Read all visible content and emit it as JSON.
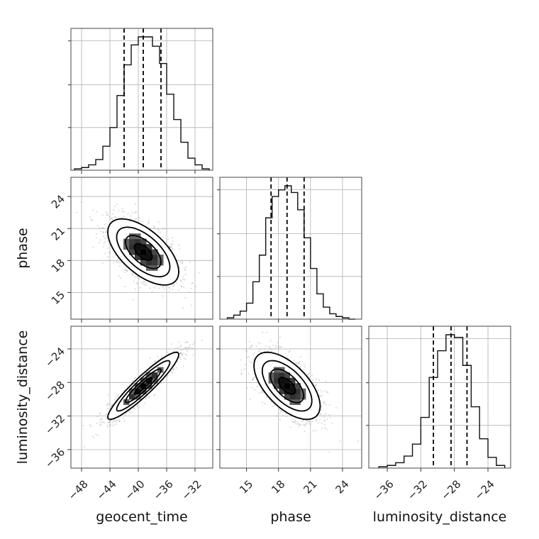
{
  "chart_data": {
    "type": "corner",
    "parameters": [
      "geocent_time",
      "phase",
      "luminosity_distance"
    ],
    "axes": {
      "geocent_time": {
        "range": [
          -49.5,
          -29.5
        ],
        "ticks": [
          -48,
          -44,
          -40,
          -36,
          -32
        ],
        "tick_labels": [
          "−48",
          "−44",
          "−40",
          "−36",
          "−32"
        ]
      },
      "phase": {
        "range": [
          12.5,
          25.8
        ],
        "ticks": [
          15,
          18,
          21,
          24
        ],
        "tick_labels": [
          "15",
          "18",
          "21",
          "24"
        ]
      },
      "luminosity_distance": {
        "range": [
          -38.2,
          -21.3
        ],
        "ticks": [
          -36,
          -32,
          -28,
          -24
        ],
        "tick_labels": [
          "−36",
          "−32",
          "−28",
          "−24"
        ]
      }
    },
    "marginals": [
      {
        "parameter": "geocent_time",
        "bin_edges": [
          -49,
          -48,
          -47,
          -46,
          -45,
          -44,
          -43,
          -42,
          -41,
          -40,
          -39,
          -38,
          -37,
          -36,
          -35,
          -34,
          -33,
          -32,
          -31,
          -30
        ],
        "counts": [
          1,
          2,
          4,
          8,
          18,
          32,
          56,
          79,
          94,
          100,
          100,
          93,
          80,
          57,
          38,
          21,
          9,
          4,
          1
        ],
        "quantiles": [
          -42.0,
          -39.3,
          -36.8
        ]
      },
      {
        "parameter": "phase",
        "bin_edges": [
          13.2,
          13.8,
          14.4,
          15.0,
          15.6,
          16.2,
          16.8,
          17.4,
          18.0,
          18.6,
          19.2,
          19.8,
          20.4,
          21.0,
          21.6,
          22.2,
          22.8,
          23.4,
          24.0,
          24.6,
          25.2
        ],
        "counts": [
          1,
          3,
          6,
          12,
          28,
          48,
          76,
          92,
          97,
          100,
          95,
          82,
          61,
          38,
          19,
          9,
          4,
          2,
          1,
          0
        ],
        "quantiles": [
          17.3,
          18.8,
          20.4
        ]
      },
      {
        "parameter": "luminosity_distance",
        "bin_edges": [
          -37,
          -36,
          -35,
          -34,
          -33,
          -32,
          -31,
          -30,
          -29,
          -28,
          -27,
          -26,
          -25,
          -24,
          -23,
          -22
        ],
        "counts": [
          1,
          2,
          4,
          9,
          18,
          38,
          68,
          88,
          100,
          98,
          77,
          46,
          22,
          8,
          2
        ],
        "quantiles": [
          -30.5,
          -28.4,
          -26.5
        ]
      }
    ],
    "joint": [
      {
        "x": "geocent_time",
        "y": "phase",
        "mean": [
          -39.3,
          18.8
        ],
        "sigma": [
          2.5,
          1.55
        ],
        "correlation": -0.6
      },
      {
        "x": "geocent_time",
        "y": "luminosity_distance",
        "mean": [
          -39.3,
          -28.4
        ],
        "sigma": [
          2.5,
          2.0
        ],
        "correlation": 0.93
      },
      {
        "x": "phase",
        "y": "luminosity_distance",
        "mean": [
          18.8,
          -28.4
        ],
        "sigma": [
          1.55,
          2.0
        ],
        "correlation": -0.6
      }
    ],
    "contour_levels_sigma": [
      0.5,
      1.0,
      1.5,
      2.0
    ],
    "grid": true,
    "quantile_lines": "dashed"
  }
}
